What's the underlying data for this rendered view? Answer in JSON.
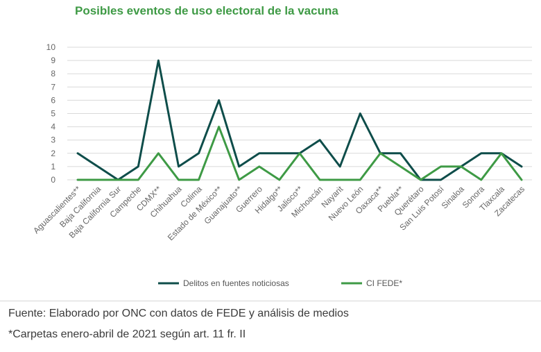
{
  "chart_data": {
    "type": "line",
    "title": "Posibles eventos de uso electoral de la vacuna",
    "xlabel": "",
    "ylabel": "",
    "ylim": [
      0,
      10
    ],
    "yticks": [
      0,
      1,
      2,
      3,
      4,
      5,
      6,
      7,
      8,
      9,
      10
    ],
    "grid": true,
    "legend_position": "bottom",
    "categories": [
      "Aguascalientes**",
      "Baja California",
      "Baja California Sur",
      "Campeche",
      "CDMX**",
      "Chihuahua",
      "Colima",
      "Estado de México**",
      "Guanajuato**",
      "Guerrero",
      "Hidalgo**",
      "Jalisco**",
      "Michoacán",
      "Nayarit",
      "Nuevo León",
      "Oaxaca**",
      "Puebla**",
      "Querétaro",
      "San Luis Potosí",
      "Sinaloa",
      "Sonora",
      "Tlaxcala",
      "Zacatecas"
    ],
    "series": [
      {
        "name": "Delitos en fuentes noticiosas",
        "color": "#0e4d4a",
        "values": [
          2,
          1,
          0,
          1,
          9,
          1,
          2,
          6,
          1,
          2,
          2,
          2,
          3,
          1,
          5,
          2,
          2,
          0,
          0,
          1,
          2,
          2,
          1
        ]
      },
      {
        "name": "CI FEDE*",
        "color": "#3e9a45",
        "values": [
          0,
          0,
          0,
          0,
          2,
          0,
          0,
          4,
          0,
          1,
          0,
          2,
          0,
          0,
          0,
          2,
          1,
          0,
          1,
          1,
          0,
          2,
          0
        ]
      }
    ]
  },
  "footer": {
    "source": "Fuente: Elaborado por ONC con datos de FEDE y análisis de medios",
    "note": "*Carpetas enero-abril de 2021 según art. 11 fr. II"
  },
  "colors": {
    "title": "#3e9a45",
    "grid": "#d9d9d9",
    "axis_text": "#666666"
  }
}
